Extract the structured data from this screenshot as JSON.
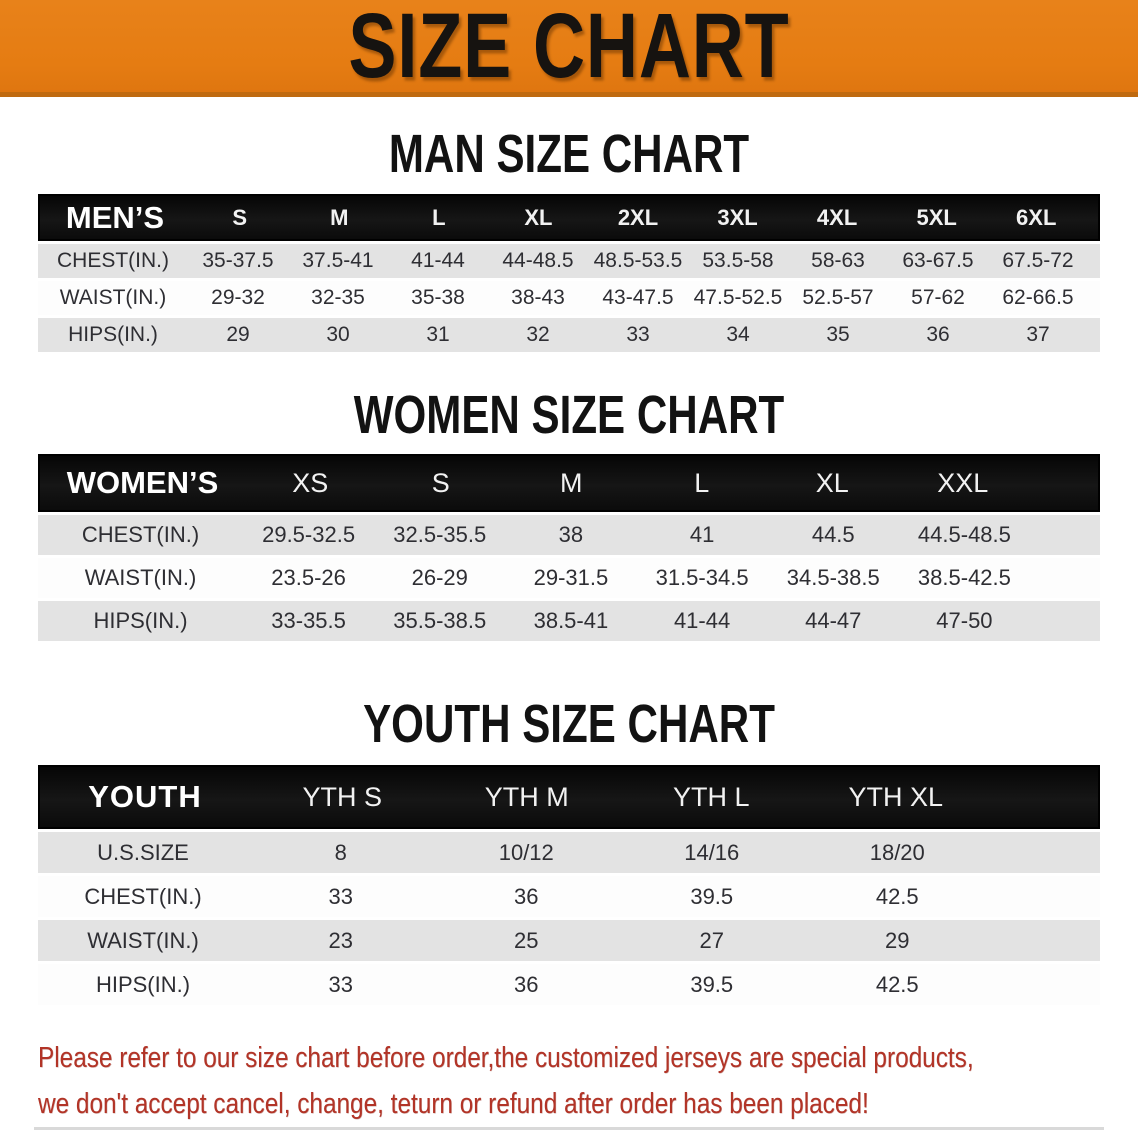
{
  "banner": {
    "title": "SIZE CHART",
    "bg_color": "#e57c12",
    "text_color": "#161310"
  },
  "sections": [
    {
      "title": "MAN SIZE CHART",
      "header_label": "MEN’S",
      "columns": [
        "S",
        "M",
        "L",
        "XL",
        "2XL",
        "3XL",
        "4XL",
        "5XL",
        "6XL"
      ],
      "rows": [
        {
          "label": "CHEST(IN.)",
          "values": [
            "35-37.5",
            "37.5-41",
            "41-44",
            "44-48.5",
            "48.5-53.5",
            "53.5-58",
            "58-63",
            "63-67.5",
            "67.5-72"
          ]
        },
        {
          "label": "WAIST(IN.)",
          "values": [
            "29-32",
            "32-35",
            "35-38",
            "38-43",
            "43-47.5",
            "47.5-52.5",
            "52.5-57",
            "57-62",
            "62-66.5"
          ]
        },
        {
          "label": "HIPS(IN.)",
          "values": [
            "29",
            "30",
            "31",
            "32",
            "33",
            "34",
            "35",
            "36",
            "37"
          ]
        }
      ]
    },
    {
      "title": "WOMEN SIZE CHART",
      "header_label": "WOMEN’S",
      "columns": [
        "XS",
        "S",
        "M",
        "L",
        "XL",
        "XXL"
      ],
      "rows": [
        {
          "label": "CHEST(IN.)",
          "values": [
            "29.5-32.5",
            "32.5-35.5",
            "38",
            "41",
            "44.5",
            "44.5-48.5"
          ]
        },
        {
          "label": "WAIST(IN.)",
          "values": [
            "23.5-26",
            "26-29",
            "29-31.5",
            "31.5-34.5",
            "34.5-38.5",
            "38.5-42.5"
          ]
        },
        {
          "label": "HIPS(IN.)",
          "values": [
            "33-35.5",
            "35.5-38.5",
            "38.5-41",
            "41-44",
            "44-47",
            "47-50"
          ]
        }
      ]
    },
    {
      "title": "YOUTH SIZE CHART",
      "header_label": "YOUTH",
      "columns": [
        "YTH S",
        "YTH M",
        "YTH L",
        "YTH XL"
      ],
      "rows": [
        {
          "label": "U.S.SIZE",
          "values": [
            "8",
            "10/12",
            "14/16",
            "18/20"
          ]
        },
        {
          "label": "CHEST(IN.)",
          "values": [
            "33",
            "36",
            "39.5",
            "42.5"
          ]
        },
        {
          "label": "WAIST(IN.)",
          "values": [
            "23",
            "25",
            "27",
            "29"
          ]
        },
        {
          "label": "HIPS(IN.)",
          "values": [
            "33",
            "36",
            "39.5",
            "42.5"
          ]
        }
      ]
    }
  ],
  "disclaimer": {
    "line1": "Please refer to our size chart before order,the customized jerseys are special products,",
    "line2": "we don't accept cancel, change, teturn or refund after order has been placed!",
    "color": "#b23427"
  }
}
